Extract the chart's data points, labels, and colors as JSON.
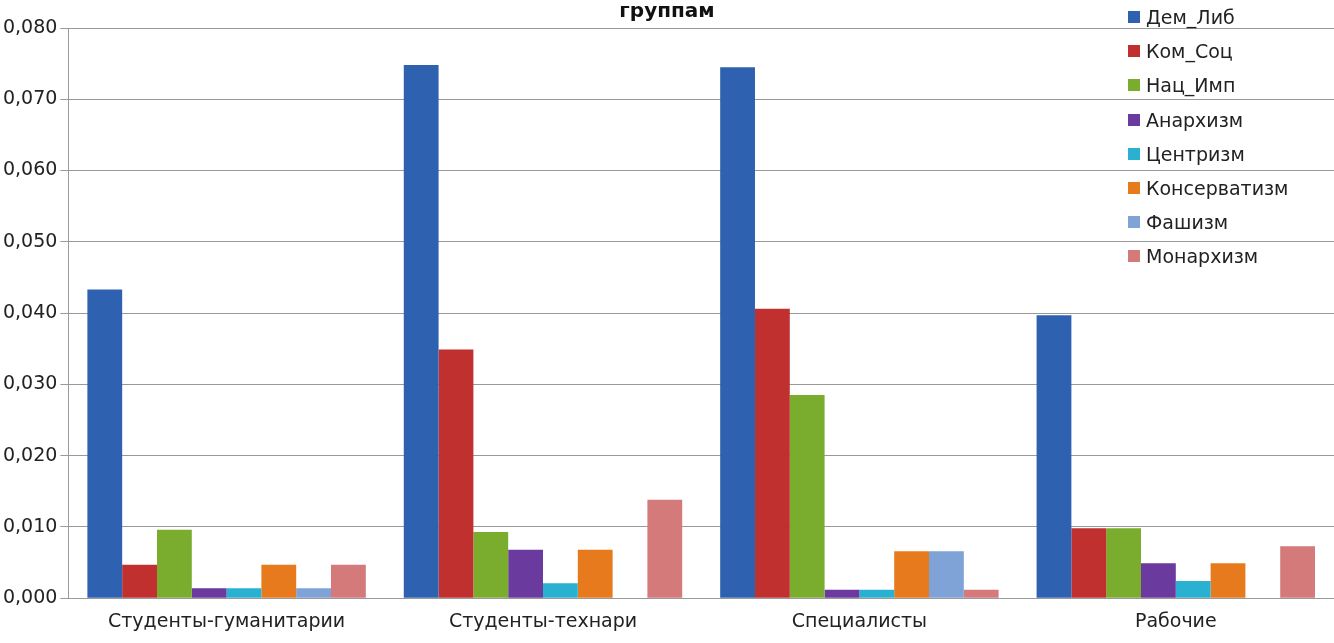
{
  "chart_data": {
    "type": "bar",
    "title": "группам",
    "categories": [
      "Студенты-гуманитарии",
      "Студенты-технари",
      "Специалисты",
      "Рабочие"
    ],
    "series": [
      {
        "name": "Дем_Либ",
        "color": "#2e62b0",
        "values": [
          0.0433,
          0.0748,
          0.0745,
          0.0397
        ]
      },
      {
        "name": "Ком_Соц",
        "color": "#c0302e",
        "values": [
          0.0047,
          0.0349,
          0.0406,
          0.0098
        ]
      },
      {
        "name": "Нац_Имп",
        "color": "#7aac2e",
        "values": [
          0.0096,
          0.0093,
          0.0285,
          0.0098
        ]
      },
      {
        "name": "Анархизм",
        "color": "#6a3a9e",
        "values": [
          0.0014,
          0.0068,
          0.0012,
          0.0049
        ]
      },
      {
        "name": "Центризм",
        "color": "#2ab0d0",
        "values": [
          0.0014,
          0.0021,
          0.0012,
          0.0024
        ]
      },
      {
        "name": "Консерватизм",
        "color": "#e87a1e",
        "values": [
          0.0047,
          0.0068,
          0.0066,
          0.0049
        ]
      },
      {
        "name": "Фашизм",
        "color": "#7fa3d6",
        "values": [
          0.0014,
          0,
          0.0066,
          0
        ]
      },
      {
        "name": "Монархизм",
        "color": "#d47a7a",
        "values": [
          0.0047,
          0.0138,
          0.0012,
          0.0073
        ]
      }
    ],
    "ylim": [
      0,
      0.08
    ],
    "yticks": [
      {
        "value": 0,
        "label": "0,000"
      },
      {
        "value": 0.01,
        "label": "0,010"
      },
      {
        "value": 0.02,
        "label": "0,020"
      },
      {
        "value": 0.03,
        "label": "0,030"
      },
      {
        "value": 0.04,
        "label": "0,040"
      },
      {
        "value": 0.05,
        "label": "0,050"
      },
      {
        "value": 0.06,
        "label": "0,060"
      },
      {
        "value": 0.07,
        "label": "0,070"
      },
      {
        "value": 0.08,
        "label": "0,080"
      }
    ],
    "grid": "y",
    "legend": "top right"
  }
}
